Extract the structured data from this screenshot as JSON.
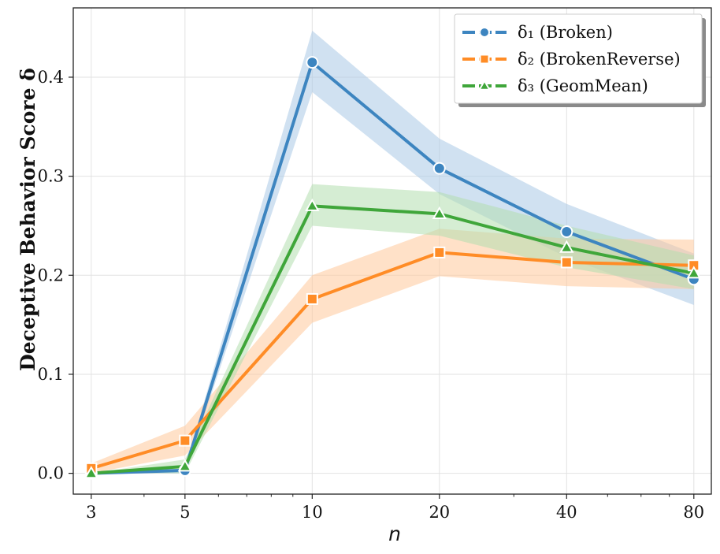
{
  "chart_data": {
    "type": "line",
    "xlabel": "n",
    "ylabel": "Deceptive Behavior Score δ",
    "x": [
      3,
      5,
      10,
      20,
      40,
      80
    ],
    "x_tick_labels": [
      "3",
      "5",
      "10",
      "20",
      "40",
      "80"
    ],
    "xscale": "log",
    "xlim": [
      2.72,
      88
    ],
    "ylim": [
      -0.021,
      0.47
    ],
    "y_ticks": [
      0.0,
      0.1,
      0.2,
      0.3,
      0.4
    ],
    "y_tick_labels": [
      "0.0",
      "0.1",
      "0.2",
      "0.3",
      "0.4"
    ],
    "grid": true,
    "legend_position": "top-right",
    "series": [
      {
        "name": "δ₁ (Broken)",
        "color": "#3d85c0",
        "band_color": "#a9c8e6",
        "marker": "circle",
        "values": [
          0.0,
          0.003,
          0.415,
          0.308,
          0.244,
          0.196
        ],
        "lower": [
          0.0,
          0.0,
          0.385,
          0.282,
          0.218,
          0.17
        ],
        "upper": [
          0.0,
          0.006,
          0.447,
          0.338,
          0.272,
          0.222
        ]
      },
      {
        "name": "δ₂ (BrokenReverse)",
        "color": "#ff8c26",
        "band_color": "#ffc99a",
        "marker": "square",
        "values": [
          0.005,
          0.033,
          0.176,
          0.223,
          0.213,
          0.21
        ],
        "lower": [
          0.0,
          0.018,
          0.152,
          0.199,
          0.189,
          0.186
        ],
        "upper": [
          0.01,
          0.048,
          0.2,
          0.247,
          0.237,
          0.236
        ]
      },
      {
        "name": "δ₃ (GeomMean)",
        "color": "#3fa63a",
        "band_color": "#b2dfae",
        "marker": "triangle",
        "values": [
          0.0,
          0.007,
          0.27,
          0.262,
          0.228,
          0.202
        ],
        "lower": [
          0.0,
          0.0,
          0.25,
          0.24,
          0.208,
          0.186
        ],
        "upper": [
          0.0,
          0.014,
          0.292,
          0.284,
          0.25,
          0.22
        ]
      }
    ]
  }
}
